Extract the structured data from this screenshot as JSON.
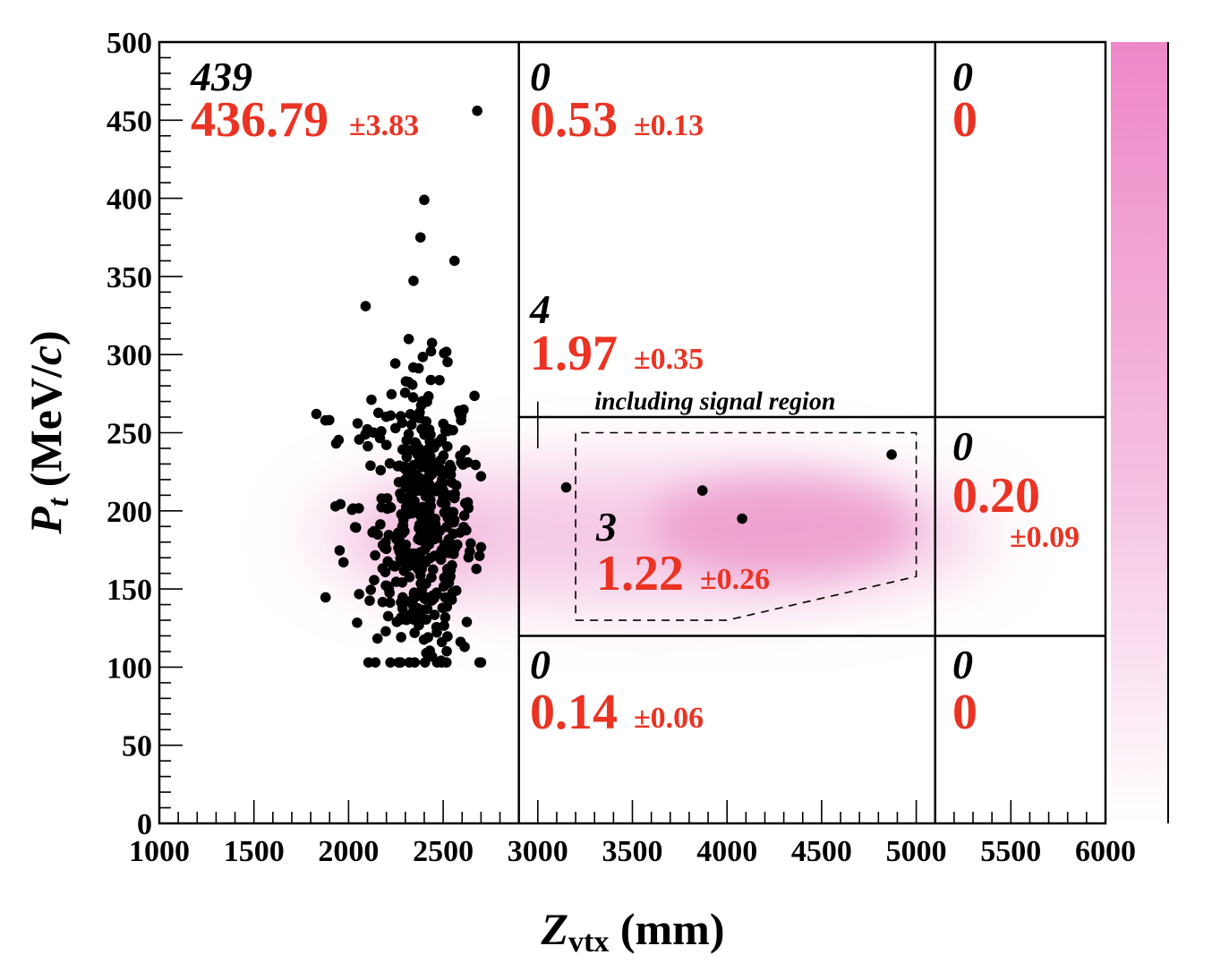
{
  "chart_data": {
    "type": "scatter",
    "xlabel_main": "Z",
    "xlabel_sub": "vtx",
    "xlabel_unit": " (mm)",
    "ylabel_main": "P",
    "ylabel_sub": "t",
    "ylabel_unit_pre": " (MeV/",
    "ylabel_unit_c": "c",
    "ylabel_unit_post": ")",
    "xlim": [
      1000,
      6000
    ],
    "ylim": [
      0,
      500
    ],
    "x_ticks": [
      "1000",
      "1500",
      "2000",
      "2500",
      "3000",
      "3500",
      "4000",
      "4500",
      "5000",
      "5500",
      "6000"
    ],
    "y_ticks": [
      "0",
      "50",
      "100",
      "150",
      "200",
      "250",
      "300",
      "350",
      "400",
      "450",
      "500"
    ],
    "region_boundaries": {
      "z": [
        2900,
        5100
      ],
      "pt": [
        120,
        260
      ]
    },
    "signal_region": [
      [
        3200,
        130
      ],
      [
        4000,
        130
      ],
      [
        5000,
        158
      ],
      [
        5000,
        250
      ],
      [
        3200,
        250
      ]
    ],
    "signal_region_label": "including signal region",
    "regions": [
      {
        "id": "left",
        "observed": "439",
        "expected": "436.79",
        "error": "±3.83"
      },
      {
        "id": "mid-upper",
        "observed": "0",
        "expected": "0.53",
        "error": "±0.13"
      },
      {
        "id": "mid-middle-incl",
        "observed": "4",
        "expected": "1.97",
        "error": "±0.35"
      },
      {
        "id": "signal",
        "observed": "3",
        "expected": "1.22",
        "error": "±0.26"
      },
      {
        "id": "mid-lower",
        "observed": "0",
        "expected": "0.14",
        "error": "±0.06"
      },
      {
        "id": "right-upper",
        "observed": "0",
        "expected": "0"
      },
      {
        "id": "right-middle",
        "observed": "0",
        "expected": "0.20",
        "error": "±0.09"
      },
      {
        "id": "right-lower",
        "observed": "0",
        "expected": "0"
      }
    ],
    "outside_points": [
      [
        3150,
        215
      ],
      [
        3870,
        213
      ],
      [
        4080,
        195
      ],
      [
        4870,
        236
      ]
    ],
    "signal_mc_color": "#e880c0",
    "colorbar": {
      "top_color": "#ee88c8",
      "bottom_color": "#ffffff"
    },
    "point_color": "#000000",
    "expected_color": "#ea3323"
  }
}
